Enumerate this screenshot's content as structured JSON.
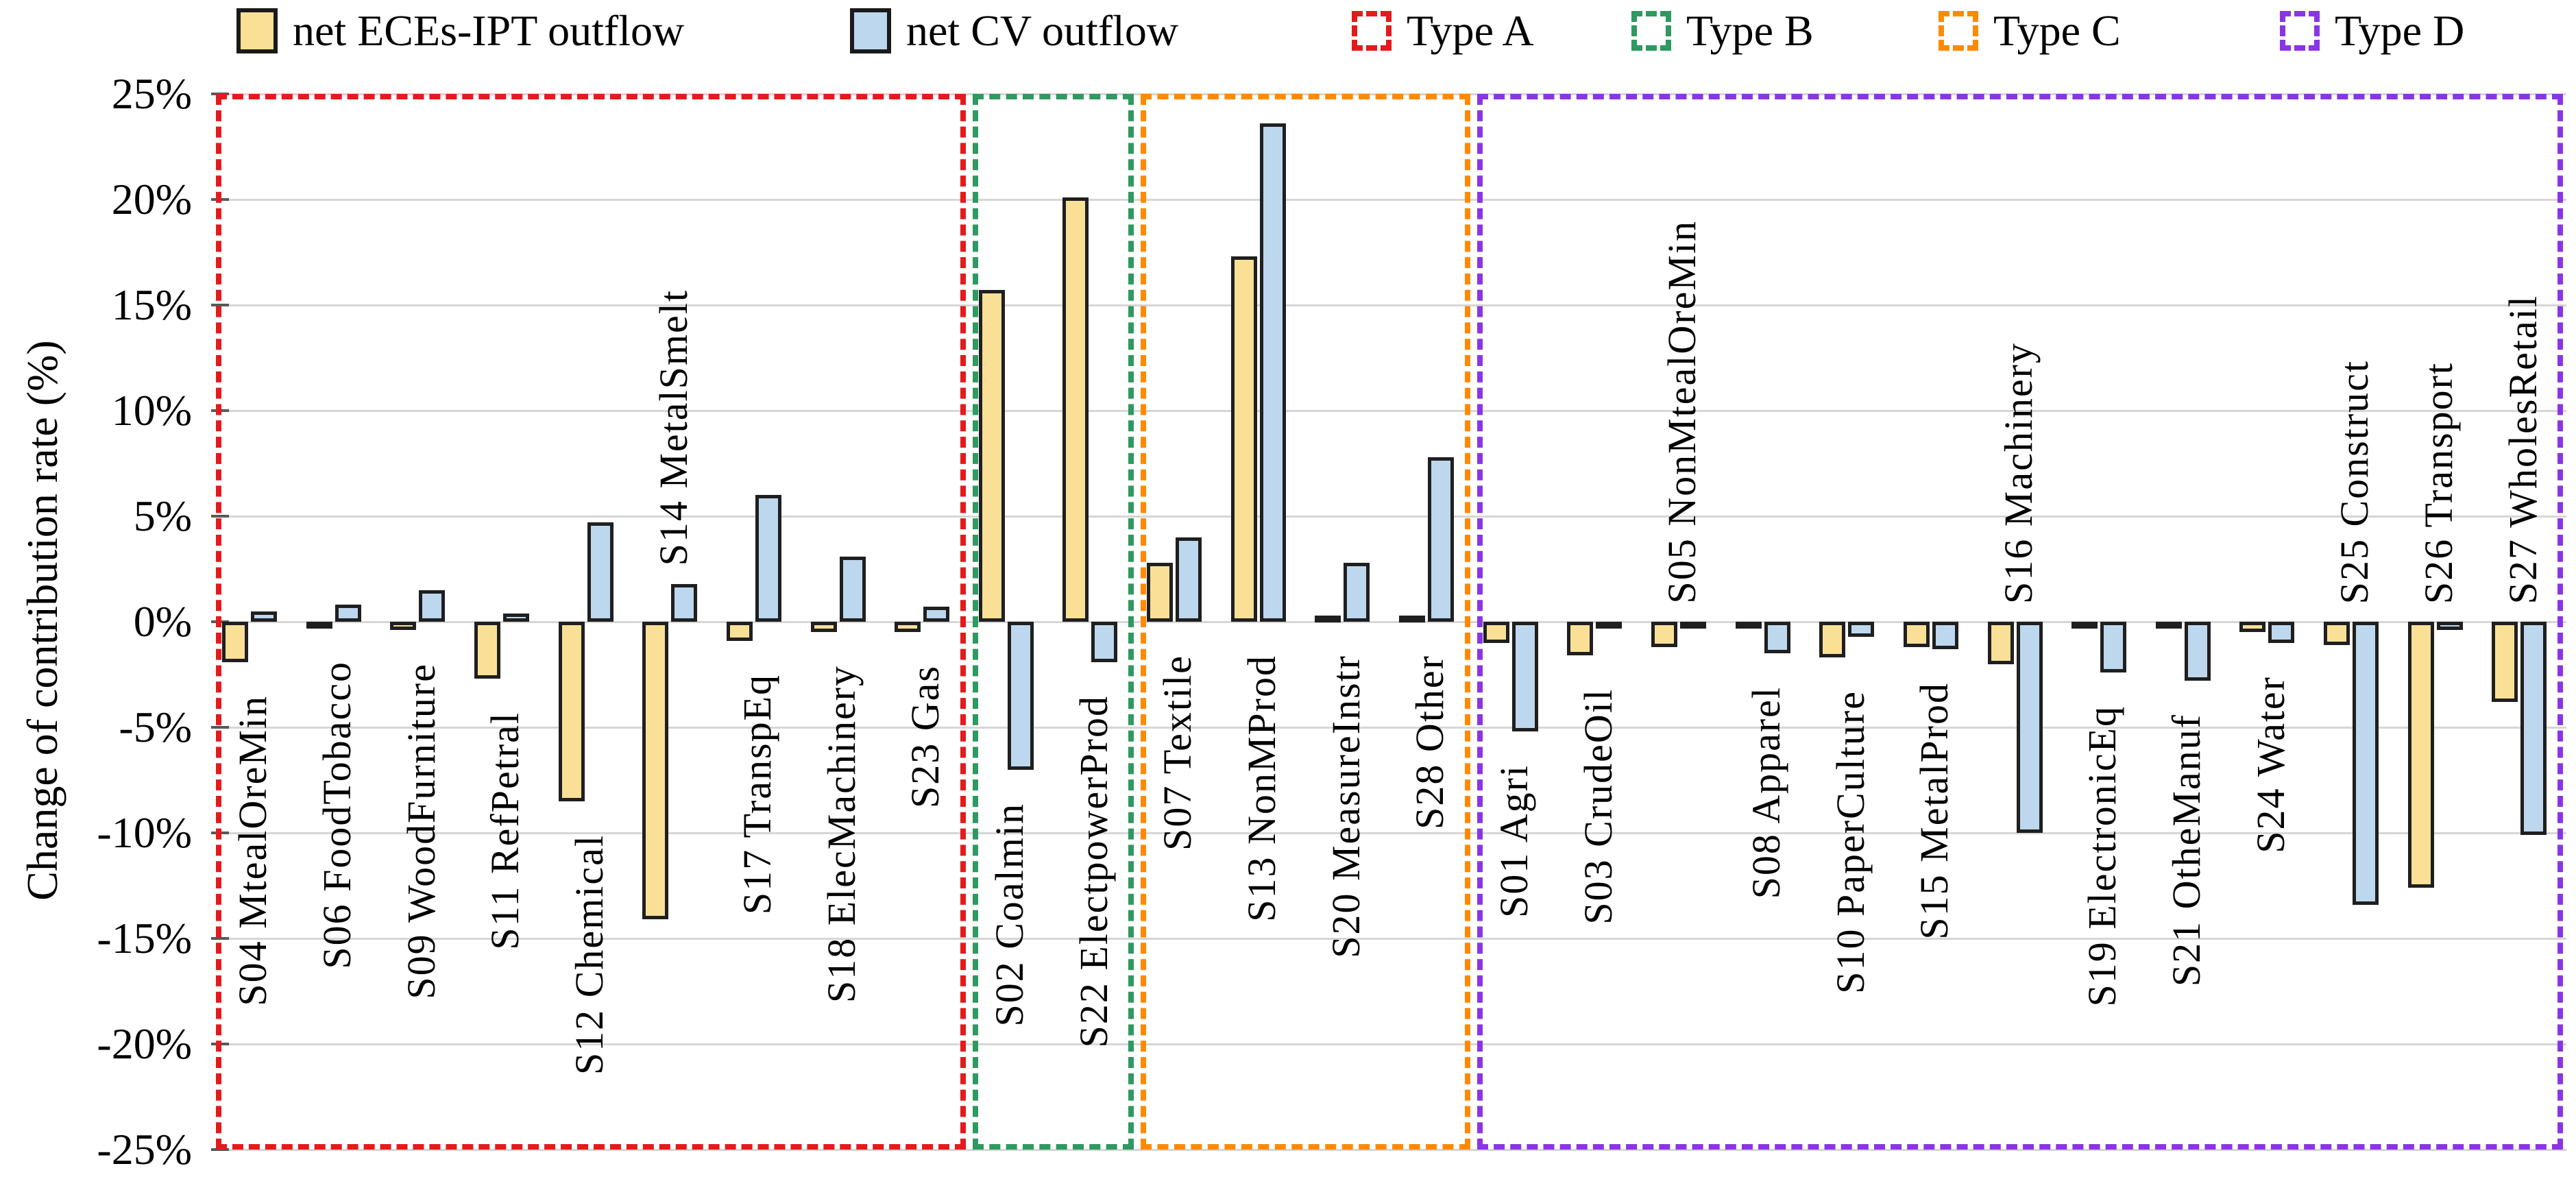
{
  "legend": {
    "series_labels": [
      "net ECEs-IPT outflow",
      "net CV outflow"
    ],
    "type_labels": [
      "Type A",
      "Type B",
      "Type C",
      "Type D"
    ]
  },
  "y_axis": {
    "title": "Change of contribution rate (%)",
    "ticks": [
      {
        "v": 25,
        "label": "25%"
      },
      {
        "v": 20,
        "label": "20%"
      },
      {
        "v": 15,
        "label": "15%"
      },
      {
        "v": 10,
        "label": "10%"
      },
      {
        "v": 5,
        "label": "5%"
      },
      {
        "v": 0,
        "label": "0%"
      },
      {
        "v": -5,
        "label": "-5%"
      },
      {
        "v": -10,
        "label": "-10%"
      },
      {
        "v": -15,
        "label": "-15%"
      },
      {
        "v": -20,
        "label": "-20%"
      },
      {
        "v": -25,
        "label": "-25%"
      }
    ]
  },
  "chart_data": {
    "type": "bar",
    "title": "",
    "xlabel": "",
    "ylabel": "Change of contribution rate (%)",
    "ylim": [
      -25,
      25
    ],
    "grid": true,
    "legend_position": "top",
    "series": [
      {
        "name": "net ECEs-IPT outflow",
        "color": "#FAE096"
      },
      {
        "name": "net CV outflow",
        "color": "#BDD7EE"
      }
    ],
    "bar_border_color": "#1f1f1f",
    "groups": [
      {
        "name": "Type A",
        "color": "#E41A1C",
        "start": 0,
        "end": 8
      },
      {
        "name": "Type B",
        "color": "#2E9960",
        "start": 9,
        "end": 10
      },
      {
        "name": "Type C",
        "color": "#FF8A00",
        "start": 11,
        "end": 14
      },
      {
        "name": "Type D",
        "color": "#8A35E5",
        "start": 15,
        "end": 27
      }
    ],
    "categories": [
      {
        "code": "S04",
        "label": "S04 MtealOreMin",
        "group": "Type A",
        "values": [
          -1.9,
          0.5
        ],
        "label_side": "below"
      },
      {
        "code": "S06",
        "label": "S06 FoodTobacco",
        "group": "Type A",
        "values": [
          -0.3,
          0.8
        ],
        "label_side": "below"
      },
      {
        "code": "S09",
        "label": "S09 WoodFurniture",
        "group": "Type A",
        "values": [
          -0.4,
          1.5
        ],
        "label_side": "below"
      },
      {
        "code": "S11",
        "label": "S11 RefPetral",
        "group": "Type A",
        "values": [
          -2.7,
          0.4
        ],
        "label_side": "below"
      },
      {
        "code": "S12",
        "label": "S12 Chemical",
        "group": "Type A",
        "values": [
          -8.5,
          4.7
        ],
        "label_side": "below"
      },
      {
        "code": "S14",
        "label": "S14 MetalSmelt",
        "group": "Type A",
        "values": [
          -14.1,
          1.8
        ],
        "label_side": "above"
      },
      {
        "code": "S17",
        "label": "S17 TranspEq",
        "group": "Type A",
        "values": [
          -0.9,
          6.0
        ],
        "label_side": "below"
      },
      {
        "code": "S18",
        "label": "S18 ElecMachinery",
        "group": "Type A",
        "values": [
          -0.5,
          3.1
        ],
        "label_side": "below"
      },
      {
        "code": "S23",
        "label": "S23 Gas",
        "group": "Type A",
        "values": [
          -0.5,
          0.7
        ],
        "label_side": "below"
      },
      {
        "code": "S02",
        "label": "S02 Coalmin",
        "group": "Type B",
        "values": [
          15.7,
          -7.0
        ],
        "label_side": "below"
      },
      {
        "code": "S22",
        "label": "S22 ElectpowerProd",
        "group": "Type B",
        "values": [
          20.1,
          -1.9
        ],
        "label_side": "below"
      },
      {
        "code": "S07",
        "label": "S07 Textile",
        "group": "Type C",
        "values": [
          2.8,
          4.0
        ],
        "label_side": "below"
      },
      {
        "code": "S13",
        "label": "S13 NonMProd",
        "group": "Type C",
        "values": [
          17.3,
          23.6
        ],
        "label_side": "below"
      },
      {
        "code": "S20",
        "label": "S20 MeasureInstr",
        "group": "Type C",
        "values": [
          0.1,
          2.8
        ],
        "label_side": "below"
      },
      {
        "code": "S28",
        "label": "S28 Other",
        "group": "Type C",
        "values": [
          0.2,
          7.8
        ],
        "label_side": "below"
      },
      {
        "code": "S01",
        "label": "S01 Agri",
        "group": "Type D",
        "values": [
          -1.0,
          -5.2
        ],
        "label_side": "below"
      },
      {
        "code": "S03",
        "label": "S03 CrudeOil",
        "group": "Type D",
        "values": [
          -1.6,
          -0.2
        ],
        "label_side": "below"
      },
      {
        "code": "S05",
        "label": "S05 NonMtealOreMin",
        "group": "Type D",
        "values": [
          -1.2,
          -0.1
        ],
        "label_side": "above"
      },
      {
        "code": "S08",
        "label": "S08 Apparel",
        "group": "Type D",
        "values": [
          -0.2,
          -1.5
        ],
        "label_side": "below"
      },
      {
        "code": "S10",
        "label": "S10 PaperCulture",
        "group": "Type D",
        "values": [
          -1.7,
          -0.7
        ],
        "label_side": "below"
      },
      {
        "code": "S15",
        "label": "S15 MetalProd",
        "group": "Type D",
        "values": [
          -1.2,
          -1.3
        ],
        "label_side": "below"
      },
      {
        "code": "S16",
        "label": "S16 Machinery",
        "group": "Type D",
        "values": [
          -2.0,
          -10.0
        ],
        "label_side": "above"
      },
      {
        "code": "S19",
        "label": "S19 ElectronicEq",
        "group": "Type D",
        "values": [
          -0.3,
          -2.4
        ],
        "label_side": "below"
      },
      {
        "code": "S21",
        "label": "S21 OtheManuf",
        "group": "Type D",
        "values": [
          -0.3,
          -2.8
        ],
        "label_side": "below"
      },
      {
        "code": "S24",
        "label": "S24 Water",
        "group": "Type D",
        "values": [
          -0.5,
          -1.0
        ],
        "label_side": "below"
      },
      {
        "code": "S25",
        "label": "S25 Construct",
        "group": "Type D",
        "values": [
          -1.1,
          -13.4
        ],
        "label_side": "above"
      },
      {
        "code": "S26",
        "label": "S26 Transport",
        "group": "Type D",
        "values": [
          -12.6,
          -0.4
        ],
        "label_side": "above"
      },
      {
        "code": "S27",
        "label": "S27 WholesRetail",
        "group": "Type D",
        "values": [
          -3.8,
          -10.1
        ],
        "label_side": "above"
      }
    ]
  }
}
